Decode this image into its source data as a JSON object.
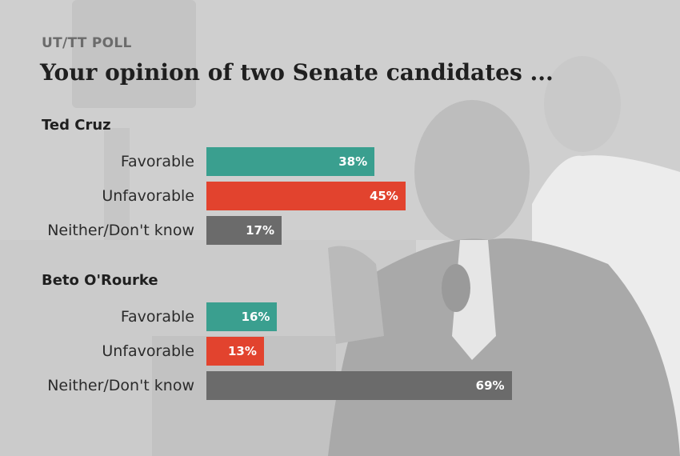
{
  "header": {
    "kicker": "UT/TT POLL",
    "title": "Your opinion of two Senate candidates ..."
  },
  "colors": {
    "favorable": "#3a9f8f",
    "unfavorable": "#e2432e",
    "neither": "#6b6b6b"
  },
  "chart_data": {
    "type": "bar",
    "orientation": "horizontal",
    "title": "Your opinion of two Senate candidates ...",
    "xlim": [
      0,
      100
    ],
    "grid": false,
    "groups": [
      {
        "name": "Ted Cruz",
        "bars": [
          {
            "label": "Favorable",
            "value": 38,
            "display": "38%",
            "color_key": "favorable"
          },
          {
            "label": "Unfavorable",
            "value": 45,
            "display": "45%",
            "color_key": "unfavorable"
          },
          {
            "label": "Neither/Don't know",
            "value": 17,
            "display": "17%",
            "color_key": "neither"
          }
        ]
      },
      {
        "name": "Beto O'Rourke",
        "bars": [
          {
            "label": "Favorable",
            "value": 16,
            "display": "16%",
            "color_key": "favorable"
          },
          {
            "label": "Unfavorable",
            "value": 13,
            "display": "13%",
            "color_key": "unfavorable"
          },
          {
            "label": "Neither/Don't know",
            "value": 69,
            "display": "69%",
            "color_key": "neither"
          }
        ]
      }
    ]
  }
}
